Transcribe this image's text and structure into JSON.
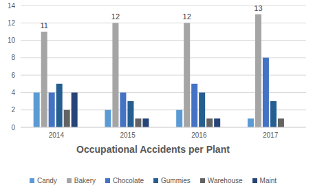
{
  "chart_data": {
    "type": "bar",
    "title": "Occupational Accidents per Plant",
    "categories": [
      "2014",
      "2015",
      "2016",
      "2017"
    ],
    "series": [
      {
        "name": "Candy",
        "color": "#5b9bd5",
        "values": [
          4,
          2,
          2,
          1
        ]
      },
      {
        "name": "Bakery",
        "color": "#a5a5a5",
        "values": [
          11,
          12,
          12,
          13
        ],
        "data_labels": true
      },
      {
        "name": "Chocolate",
        "color": "#4472c4",
        "values": [
          4,
          4,
          5,
          8
        ]
      },
      {
        "name": "Gummies",
        "color": "#255e91",
        "values": [
          5,
          3,
          4,
          3
        ]
      },
      {
        "name": "Warehouse",
        "color": "#636363",
        "values": [
          2,
          1,
          1,
          1
        ]
      },
      {
        "name": "Maint",
        "color": "#264478",
        "values": [
          4,
          1,
          1,
          0
        ]
      }
    ],
    "ylim": [
      0,
      14
    ],
    "yticks": [
      0,
      2,
      4,
      6,
      8,
      10,
      12,
      14
    ],
    "grid": true,
    "legend": "bottom"
  }
}
